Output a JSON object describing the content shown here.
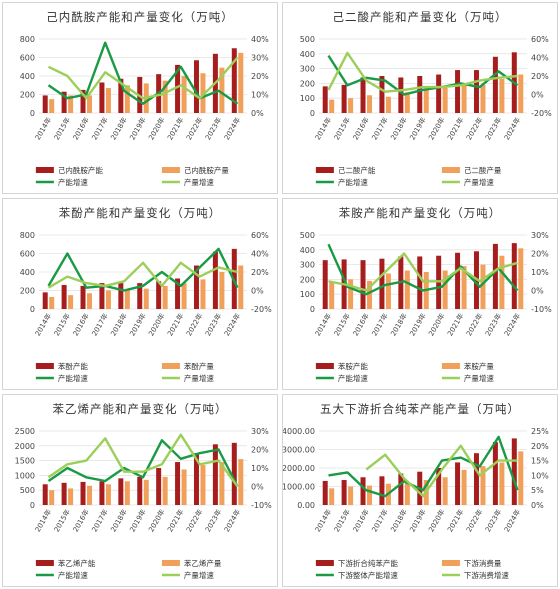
{
  "colors": {
    "capacity": "#a61d1d",
    "production": "#f0a05a",
    "capacity_growth": "#1a9a45",
    "production_growth": "#9ccf5a",
    "grid": "#e2e2e2"
  },
  "chart_data": [
    {
      "type": "bar",
      "title": "己内酰胺产能和产量变化（万吨）",
      "categories": [
        "2014年",
        "2015年",
        "2016年",
        "2017年",
        "2018年",
        "2019年",
        "2020年",
        "2021年",
        "2022年",
        "2023年",
        "2024年"
      ],
      "ylim": [
        0,
        800
      ],
      "yticks": [
        "0",
        "200",
        "400",
        "600",
        "800"
      ],
      "y2lim": [
        0,
        40
      ],
      "y2ticks": [
        "0%",
        "10%",
        "20%",
        "30%",
        "40%"
      ],
      "series": [
        {
          "name": "己内酰胺产能",
          "kind": "bar",
          "values": [
            190,
            230,
            250,
            330,
            370,
            390,
            420,
            520,
            570,
            640,
            700
          ]
        },
        {
          "name": "己内酰胺产量",
          "kind": "bar",
          "values": [
            150,
            190,
            190,
            270,
            300,
            320,
            350,
            400,
            430,
            490,
            650
          ]
        },
        {
          "name": "产能增速",
          "kind": "line",
          "values": [
            15,
            8,
            10,
            38,
            12,
            5,
            12,
            25,
            8,
            12,
            5
          ]
        },
        {
          "name": "产量增速",
          "kind": "line",
          "values": [
            25,
            20,
            8,
            22,
            15,
            8,
            10,
            15,
            8,
            18,
            30
          ]
        }
      ]
    },
    {
      "type": "bar",
      "title": "己二酸产能和产量变化（万吨）",
      "categories": [
        "2014年",
        "2015年",
        "2016年",
        "2017年",
        "2018年",
        "2019年",
        "2020年",
        "2021年",
        "2022年",
        "2023年",
        "2024年"
      ],
      "ylim": [
        0,
        500
      ],
      "yticks": [
        "0",
        "100",
        "200",
        "300",
        "400",
        "500"
      ],
      "y2lim": [
        -20,
        60
      ],
      "y2ticks": [
        "-20%",
        "0%",
        "20%",
        "40%",
        "60%"
      ],
      "series": [
        {
          "name": "己二酸产能",
          "kind": "bar",
          "values": [
            180,
            190,
            240,
            250,
            240,
            250,
            260,
            290,
            290,
            380,
            410
          ]
        },
        {
          "name": "己二酸产量",
          "kind": "bar",
          "values": [
            90,
            100,
            120,
            110,
            140,
            160,
            170,
            190,
            190,
            230,
            260
          ]
        },
        {
          "name": "产能增速",
          "kind": "line",
          "values": [
            42,
            10,
            18,
            15,
            0,
            5,
            8,
            12,
            8,
            25,
            10
          ]
        },
        {
          "name": "产量增速",
          "kind": "line",
          "values": [
            5,
            45,
            15,
            3,
            5,
            8,
            8,
            10,
            15,
            18,
            20
          ]
        }
      ]
    },
    {
      "type": "bar",
      "title": "苯酚产能和产量变化（万吨）",
      "categories": [
        "2014年",
        "2015年",
        "2016年",
        "2017年",
        "2018年",
        "2019年",
        "2020年",
        "2021年",
        "2022年",
        "2023年",
        "2024年"
      ],
      "ylim": [
        0,
        800
      ],
      "yticks": [
        "0",
        "200",
        "400",
        "600",
        "800"
      ],
      "y2lim": [
        -20,
        60
      ],
      "y2ticks": [
        "-20%",
        "0%",
        "20%",
        "40%",
        "60%"
      ],
      "series": [
        {
          "name": "苯酚产能",
          "kind": "bar",
          "values": [
            180,
            260,
            250,
            280,
            280,
            280,
            300,
            330,
            470,
            620,
            650
          ]
        },
        {
          "name": "苯酚产量",
          "kind": "bar",
          "values": [
            130,
            150,
            170,
            200,
            210,
            220,
            250,
            280,
            320,
            400,
            470
          ]
        },
        {
          "name": "产能增速",
          "kind": "line",
          "values": [
            5,
            40,
            3,
            5,
            0,
            5,
            20,
            5,
            25,
            45,
            3
          ]
        },
        {
          "name": "产量增速",
          "kind": "line",
          "values": [
            3,
            15,
            8,
            5,
            10,
            30,
            5,
            30,
            15,
            25,
            20
          ]
        }
      ]
    },
    {
      "type": "bar",
      "title": "苯胺产能和产量变化（万吨）",
      "categories": [
        "2014年",
        "2015年",
        "2016年",
        "2017年",
        "2018年",
        "2019年",
        "2020年",
        "2021年",
        "2022年",
        "2023年",
        "2024年"
      ],
      "ylim": [
        0,
        500
      ],
      "yticks": [
        "0",
        "100",
        "200",
        "300",
        "400",
        "500"
      ],
      "y2lim": [
        -10,
        30
      ],
      "y2ticks": [
        "-10%",
        "0%",
        "10%",
        "20%",
        "30%"
      ],
      "series": [
        {
          "name": "苯胺产能",
          "kind": "bar",
          "values": [
            330,
            335,
            330,
            340,
            355,
            355,
            360,
            380,
            390,
            440,
            445
          ]
        },
        {
          "name": "苯胺产量",
          "kind": "bar",
          "values": [
            180,
            200,
            190,
            240,
            260,
            250,
            260,
            290,
            300,
            360,
            410
          ]
        },
        {
          "name": "产能增速",
          "kind": "line",
          "values": [
            25,
            2,
            -2,
            3,
            5,
            0,
            2,
            13,
            2,
            12,
            0
          ]
        },
        {
          "name": "产量增速",
          "kind": "line",
          "values": [
            5,
            3,
            0,
            10,
            20,
            5,
            5,
            12,
            5,
            12,
            15
          ]
        }
      ]
    },
    {
      "type": "bar",
      "title": "苯乙烯产能和产量变化（万吨）",
      "categories": [
        "2014年",
        "2015年",
        "2016年",
        "2017年",
        "2018年",
        "2019年",
        "2020年",
        "2021年",
        "2022年",
        "2023年",
        "2024年"
      ],
      "ylim": [
        0,
        2500
      ],
      "yticks": [
        "0",
        "500",
        "1000",
        "1500",
        "2000",
        "2500"
      ],
      "y2lim": [
        -10,
        30
      ],
      "y2ticks": [
        "-10%",
        "0%",
        "10%",
        "20%",
        "30%"
      ],
      "series": [
        {
          "name": "苯乙烯产能",
          "kind": "bar",
          "values": [
            700,
            750,
            780,
            800,
            900,
            950,
            1250,
            1450,
            1750,
            2050,
            2100
          ]
        },
        {
          "name": "苯乙烯产量",
          "kind": "bar",
          "values": [
            500,
            560,
            650,
            700,
            800,
            850,
            950,
            1200,
            1350,
            1450,
            1550
          ]
        },
        {
          "name": "产能增速",
          "kind": "line",
          "values": [
            3,
            10,
            5,
            3,
            10,
            5,
            25,
            15,
            18,
            20,
            0
          ]
        },
        {
          "name": "产量增速",
          "kind": "line",
          "values": [
            5,
            12,
            14,
            26,
            8,
            8,
            12,
            28,
            12,
            14,
            0
          ]
        }
      ]
    },
    {
      "type": "bar",
      "title": "五大下游折合纯苯产能产量（万吨）",
      "categories": [
        "2014年",
        "2015年",
        "2016年",
        "2017年",
        "2018年",
        "2019年",
        "2020年",
        "2021年",
        "2022年",
        "2023年",
        "2024年"
      ],
      "ylim": [
        0,
        4000
      ],
      "yticks": [
        "0.00",
        "1000.00",
        "2000.00",
        "3000.00",
        "4000.00"
      ],
      "y2lim": [
        0,
        25
      ],
      "y2ticks": [
        "0%",
        "5%",
        "10%",
        "15%",
        "20%",
        "25%"
      ],
      "series": [
        {
          "name": "下游折合纯苯产能",
          "kind": "bar",
          "values": [
            1300,
            1350,
            1500,
            1550,
            1700,
            1800,
            2000,
            2300,
            2800,
            3400,
            3600
          ]
        },
        {
          "name": "下游消费量",
          "kind": "bar",
          "values": [
            900,
            1000,
            1050,
            1150,
            1250,
            1350,
            1500,
            1900,
            2100,
            2300,
            2900
          ]
        },
        {
          "name": "下游整体产能增速",
          "kind": "line",
          "values": [
            10,
            11,
            5,
            3,
            8,
            5,
            15,
            16,
            13,
            23,
            5
          ]
        },
        {
          "name": "下游消费增速",
          "kind": "line",
          "values": [
            null,
            null,
            12,
            17,
            9,
            3,
            12,
            20,
            10,
            15,
            15
          ]
        }
      ]
    }
  ]
}
